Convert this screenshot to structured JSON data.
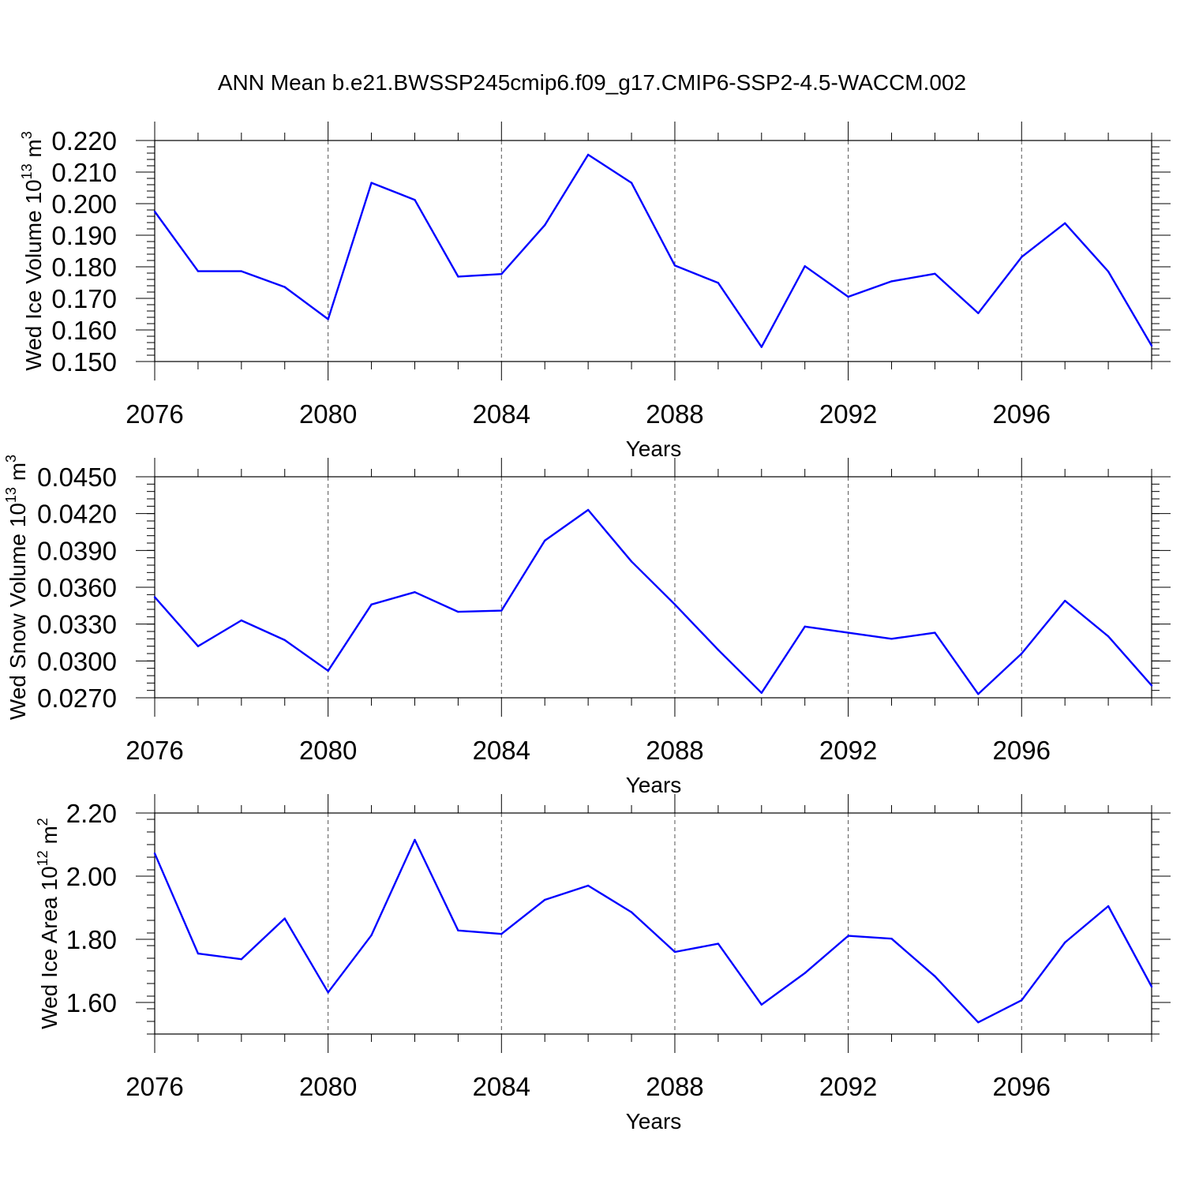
{
  "title": "ANN Mean b.e21.BWSSP245cmip6.f09_g17.CMIP6-SSP2-4.5-WACCM.002",
  "colors": {
    "line": "#0000ff",
    "axes": "#000000",
    "grid": "#555555"
  },
  "chart_data": [
    {
      "type": "line",
      "ylabel": {
        "text": "Wed Ice Volume 10",
        "sup": "13",
        "unit": " m",
        "unit_sup": "3"
      },
      "xlabel": "Years",
      "xlim": [
        2076,
        2099
      ],
      "ylim": [
        0.15,
        0.22
      ],
      "yticks": [
        "0.150",
        "0.160",
        "0.170",
        "0.180",
        "0.190",
        "0.200",
        "0.210",
        "0.220"
      ],
      "xticks": [
        "2076",
        "2080",
        "2084",
        "2088",
        "2092",
        "2096"
      ],
      "grid": "vertical dashed at labeled years",
      "x": [
        2076,
        2077,
        2078,
        2079,
        2080,
        2081,
        2082,
        2083,
        2084,
        2085,
        2086,
        2087,
        2088,
        2089,
        2090,
        2091,
        2092,
        2093,
        2094,
        2095,
        2096,
        2097,
        2098,
        2099
      ],
      "values": [
        0.1975,
        0.1786,
        0.1786,
        0.1736,
        0.1634,
        0.2066,
        0.2012,
        0.1769,
        0.1777,
        0.1932,
        0.2155,
        0.2066,
        0.1804,
        0.1749,
        0.1546,
        0.1802,
        0.1705,
        0.1754,
        0.1778,
        0.1653,
        0.1831,
        0.1938,
        0.1785,
        0.155
      ]
    },
    {
      "type": "line",
      "ylabel": {
        "text": "Wed Snow Volume 10",
        "sup": "13",
        "unit": " m",
        "unit_sup": "3"
      },
      "xlabel": "Years",
      "xlim": [
        2076,
        2099
      ],
      "ylim": [
        0.027,
        0.045
      ],
      "yticks": [
        "0.0270",
        "0.0300",
        "0.0330",
        "0.0360",
        "0.0390",
        "0.0420",
        "0.0450"
      ],
      "xticks": [
        "2076",
        "2080",
        "2084",
        "2088",
        "2092",
        "2096"
      ],
      "grid": "vertical dashed at labeled years",
      "x": [
        2076,
        2077,
        2078,
        2079,
        2080,
        2081,
        2082,
        2083,
        2084,
        2085,
        2086,
        2087,
        2088,
        2089,
        2090,
        2091,
        2092,
        2093,
        2094,
        2095,
        2096,
        2097,
        2098,
        2099
      ],
      "values": [
        0.0352,
        0.0312,
        0.0333,
        0.0317,
        0.0292,
        0.0346,
        0.0356,
        0.034,
        0.0341,
        0.0398,
        0.0423,
        0.0381,
        0.0346,
        0.0309,
        0.0274,
        0.0328,
        0.0323,
        0.0318,
        0.0323,
        0.0273,
        0.0306,
        0.0349,
        0.032,
        0.028
      ]
    },
    {
      "type": "line",
      "ylabel": {
        "text": "Wed Ice Area 10",
        "sup": "12",
        "unit": " m",
        "unit_sup": "2"
      },
      "xlabel": "Years",
      "xlim": [
        2076,
        2099
      ],
      "ylim": [
        1.5,
        2.2
      ],
      "yticks": [
        "1.60",
        "1.80",
        "2.00",
        "2.20"
      ],
      "ytick_values": [
        1.6,
        1.8,
        2.0,
        2.2
      ],
      "xticks": [
        "2076",
        "2080",
        "2084",
        "2088",
        "2092",
        "2096"
      ],
      "grid": "vertical dashed at labeled years",
      "x": [
        2076,
        2077,
        2078,
        2079,
        2080,
        2081,
        2082,
        2083,
        2084,
        2085,
        2086,
        2087,
        2088,
        2089,
        2090,
        2091,
        2092,
        2093,
        2094,
        2095,
        2096,
        2097,
        2098,
        2099
      ],
      "values": [
        2.072,
        1.755,
        1.737,
        1.866,
        1.632,
        1.813,
        2.115,
        1.828,
        1.817,
        1.925,
        1.97,
        1.886,
        1.76,
        1.786,
        1.593,
        1.693,
        1.811,
        1.802,
        1.683,
        1.537,
        1.607,
        1.79,
        1.905,
        1.65
      ]
    }
  ]
}
